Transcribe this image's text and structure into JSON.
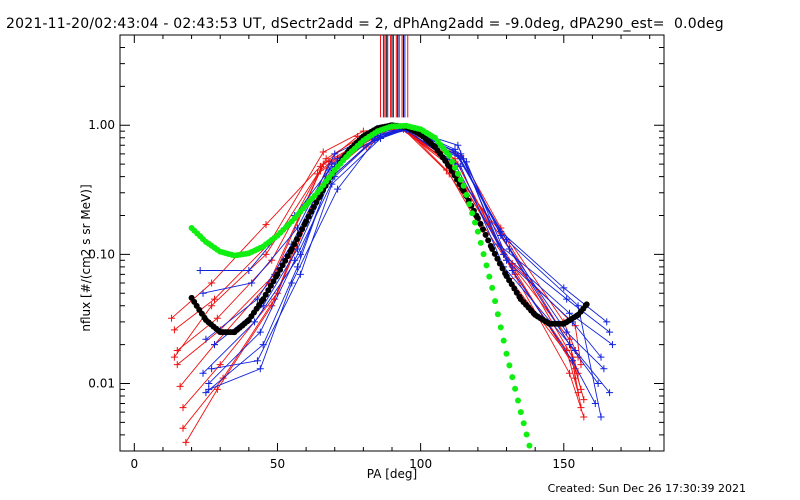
{
  "header": {
    "title": "2021-11-20/02:43:04 - 02:43:53 UT, dSectr2add = 2, dPhAng2add = -9.0deg, dPA290_est=  0.0deg"
  },
  "footer": {
    "created": "Created: Sun Dec 26 17:30:39 2021"
  },
  "chart_data": {
    "type": "line",
    "xlabel": "PA [deg]",
    "ylabel": "nflux [#/(cm2 s sr MeV)]",
    "xlim": [
      -5,
      185
    ],
    "ylim": [
      0.003,
      5.0
    ],
    "yscale": "log",
    "xticks": [
      0,
      50,
      100,
      150
    ],
    "xtick_labels": [
      "0",
      "50",
      "100",
      "150"
    ],
    "yticks": [
      0.01,
      0.1,
      1.0
    ],
    "ytick_labels": [
      "0.01",
      "0.10",
      "1.00"
    ],
    "colors": {
      "red": "#ee1111",
      "blue": "#1122dd",
      "green": "#11ee11",
      "black": "#000000"
    },
    "red_traces": [
      {
        "x": [
          13,
          27,
          46,
          65,
          78,
          92,
          108,
          130,
          152,
          155
        ],
        "y": [
          0.032,
          0.06,
          0.17,
          0.48,
          0.82,
          0.98,
          0.55,
          0.13,
          0.02,
          0.012
        ]
      },
      {
        "x": [
          14,
          28,
          47,
          66,
          80,
          93,
          110,
          131,
          153,
          156
        ],
        "y": [
          0.026,
          0.045,
          0.12,
          0.62,
          0.9,
          0.95,
          0.52,
          0.11,
          0.016,
          0.009
        ]
      },
      {
        "x": [
          15,
          29,
          48,
          67,
          81,
          94,
          111,
          132,
          154,
          157
        ],
        "y": [
          0.018,
          0.032,
          0.09,
          0.55,
          0.86,
          0.96,
          0.48,
          0.08,
          0.013,
          0.0075
        ]
      },
      {
        "x": [
          15,
          30,
          49,
          66,
          82,
          92,
          112,
          129,
          152,
          154
        ],
        "y": [
          0.014,
          0.026,
          0.07,
          0.5,
          0.8,
          0.97,
          0.55,
          0.1,
          0.022,
          0.011
        ]
      },
      {
        "x": [
          16,
          28,
          47,
          65,
          79,
          93,
          113,
          133,
          151,
          155
        ],
        "y": [
          0.0095,
          0.02,
          0.06,
          0.45,
          0.75,
          0.94,
          0.5,
          0.07,
          0.018,
          0.0085
        ]
      },
      {
        "x": [
          17,
          30,
          50,
          67,
          80,
          94,
          110,
          131,
          153,
          156
        ],
        "y": [
          0.0065,
          0.014,
          0.05,
          0.4,
          0.7,
          0.93,
          0.42,
          0.065,
          0.015,
          0.0065
        ]
      },
      {
        "x": [
          17,
          31,
          49,
          66,
          81,
          92,
          114,
          128,
          150,
          155
        ],
        "y": [
          0.0045,
          0.011,
          0.045,
          0.35,
          0.68,
          0.96,
          0.58,
          0.16,
          0.03,
          0.016
        ]
      },
      {
        "x": [
          18,
          29,
          48,
          68,
          83,
          95,
          109,
          130,
          152,
          157
        ],
        "y": [
          0.0035,
          0.009,
          0.04,
          0.52,
          0.78,
          0.92,
          0.45,
          0.09,
          0.012,
          0.0055
        ]
      },
      {
        "x": [
          14,
          27,
          46,
          64,
          79,
          93,
          111,
          132,
          154,
          156
        ],
        "y": [
          0.016,
          0.04,
          0.1,
          0.42,
          0.74,
          0.95,
          0.47,
          0.085,
          0.028,
          0.014
        ]
      }
    ],
    "blue_traces": [
      {
        "x": [
          23,
          40,
          56,
          68,
          84,
          96,
          112,
          128,
          150,
          165
        ],
        "y": [
          0.075,
          0.075,
          0.2,
          0.45,
          0.85,
          0.93,
          0.65,
          0.15,
          0.055,
          0.03
        ]
      },
      {
        "x": [
          24,
          41,
          57,
          70,
          85,
          95,
          113,
          127,
          151,
          166
        ],
        "y": [
          0.05,
          0.06,
          0.16,
          0.6,
          0.88,
          0.94,
          0.7,
          0.12,
          0.045,
          0.025
        ]
      },
      {
        "x": [
          25,
          43,
          55,
          69,
          86,
          96,
          114,
          129,
          152,
          167
        ],
        "y": [
          0.022,
          0.045,
          0.12,
          0.5,
          0.82,
          0.93,
          0.6,
          0.1,
          0.035,
          0.02
        ]
      },
      {
        "x": [
          24,
          42,
          58,
          71,
          83,
          94,
          112,
          130,
          153,
          163
        ],
        "y": [
          0.012,
          0.03,
          0.1,
          0.55,
          0.8,
          0.95,
          0.5,
          0.09,
          0.03,
          0.016
        ]
      },
      {
        "x": [
          26,
          44,
          56,
          70,
          84,
          95,
          115,
          128,
          151,
          164
        ],
        "y": [
          0.01,
          0.025,
          0.09,
          0.4,
          0.78,
          0.94,
          0.55,
          0.14,
          0.025,
          0.013
        ]
      },
      {
        "x": [
          25,
          45,
          57,
          68,
          85,
          96,
          113,
          131,
          152,
          162
        ],
        "y": [
          0.0085,
          0.02,
          0.08,
          0.38,
          0.83,
          0.92,
          0.58,
          0.11,
          0.02,
          0.01
        ]
      },
      {
        "x": [
          27,
          43,
          58,
          69,
          86,
          94,
          114,
          129,
          154,
          166
        ],
        "y": [
          0.013,
          0.015,
          0.07,
          0.35,
          0.79,
          0.95,
          0.48,
          0.08,
          0.018,
          0.0085
        ]
      },
      {
        "x": [
          26,
          44,
          55,
          71,
          84,
          95,
          116,
          132,
          153,
          161
        ],
        "y": [
          0.009,
          0.013,
          0.06,
          0.32,
          0.76,
          0.93,
          0.52,
          0.075,
          0.015,
          0.007
        ]
      },
      {
        "x": [
          28,
          45,
          57,
          70,
          83,
          96,
          112,
          130,
          155,
          163
        ],
        "y": [
          0.02,
          0.04,
          0.11,
          0.48,
          0.81,
          0.94,
          0.62,
          0.13,
          0.04,
          0.0055
        ]
      }
    ],
    "green_model": {
      "x": [
        20,
        25,
        30,
        35,
        40,
        45,
        50,
        55,
        60,
        65,
        70,
        75,
        80,
        85,
        90,
        95,
        100,
        105,
        110,
        115,
        120,
        125,
        130,
        135,
        138
      ],
      "y": [
        0.16,
        0.125,
        0.105,
        0.098,
        0.102,
        0.115,
        0.14,
        0.18,
        0.24,
        0.32,
        0.45,
        0.6,
        0.76,
        0.9,
        0.98,
        0.99,
        0.93,
        0.8,
        0.58,
        0.34,
        0.15,
        0.055,
        0.017,
        0.006,
        0.0033
      ]
    },
    "black_model": {
      "x": [
        20,
        25,
        30,
        35,
        40,
        45,
        50,
        55,
        60,
        65,
        70,
        75,
        80,
        85,
        90,
        95,
        100,
        105,
        110,
        115,
        120,
        125,
        130,
        135,
        140,
        145,
        150,
        155,
        158
      ],
      "y": [
        0.046,
        0.031,
        0.025,
        0.025,
        0.031,
        0.045,
        0.07,
        0.11,
        0.18,
        0.29,
        0.45,
        0.64,
        0.82,
        0.95,
        1.0,
        0.97,
        0.85,
        0.68,
        0.48,
        0.31,
        0.19,
        0.11,
        0.068,
        0.045,
        0.034,
        0.029,
        0.029,
        0.034,
        0.041
      ]
    },
    "vertical_markers": {
      "red_x": [
        86,
        87.5,
        89.5,
        91.5,
        93.5,
        95.5
      ],
      "blue_x": [
        87,
        88.5,
        90.5,
        92.5,
        94.5
      ],
      "black_x": [
        88,
        90,
        92,
        94
      ],
      "y_from": 1.15,
      "y_to": 5.0
    }
  }
}
